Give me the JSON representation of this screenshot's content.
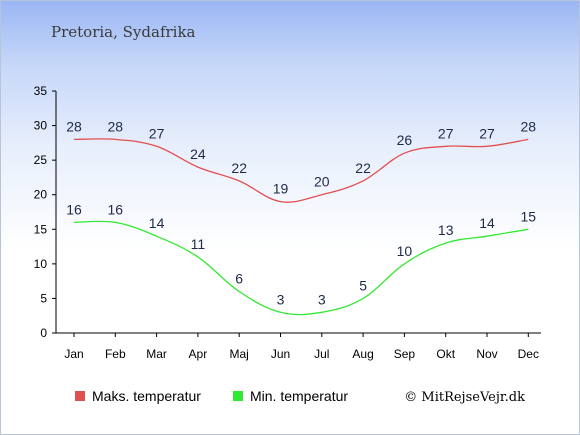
{
  "chart_data": {
    "type": "line",
    "title": "Pretoria, Sydafrika",
    "categories": [
      "Jan",
      "Feb",
      "Mar",
      "Apr",
      "Maj",
      "Jun",
      "Jul",
      "Aug",
      "Sep",
      "Okt",
      "Nov",
      "Dec"
    ],
    "series": [
      {
        "name": "Maks. temperatur",
        "color": "#e05050",
        "values": [
          28,
          28,
          27,
          24,
          22,
          19,
          20,
          22,
          26,
          27,
          27,
          28
        ]
      },
      {
        "name": "Min. temperatur",
        "color": "#33e833",
        "values": [
          16,
          16,
          14,
          11,
          6,
          3,
          3,
          5,
          10,
          13,
          14,
          15
        ]
      }
    ],
    "ylim": [
      0,
      35
    ],
    "yticks": [
      0,
      5,
      10,
      15,
      20,
      25,
      30,
      35
    ],
    "grid": false,
    "legend_position": "bottom-left",
    "credit": "© MitRejseVejr.dk"
  }
}
